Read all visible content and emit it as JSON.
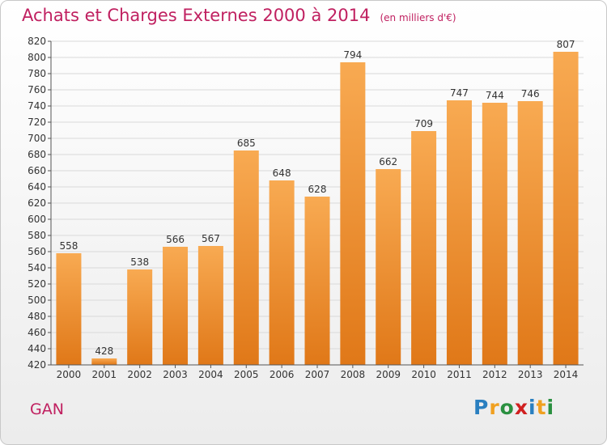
{
  "title": "Achats et Charges Externes 2000 à 2014",
  "subtitle": "(en milliers d'€)",
  "location": "GAN",
  "logo": {
    "letters": [
      "P",
      "r",
      "o",
      "x",
      "i",
      "t",
      "i"
    ],
    "colors": [
      "#2a7fc0",
      "#f0a020",
      "#2a9040",
      "#d02020",
      "#2a7fc0",
      "#f0a020",
      "#2a9040"
    ]
  },
  "colors": {
    "bar_top": "#f8aa52",
    "bar_bottom": "#e07818",
    "accent": "#c02060",
    "grid": "#d9d9d9"
  },
  "chart_data": {
    "type": "bar",
    "categories": [
      "2000",
      "2001",
      "2002",
      "2003",
      "2004",
      "2005",
      "2006",
      "2007",
      "2008",
      "2009",
      "2010",
      "2011",
      "2012",
      "2013",
      "2014"
    ],
    "values": [
      558,
      428,
      538,
      566,
      567,
      685,
      648,
      628,
      794,
      662,
      709,
      747,
      744,
      746,
      807
    ],
    "ylim": [
      420,
      820
    ],
    "yticks": [
      420,
      440,
      460,
      480,
      500,
      520,
      540,
      560,
      580,
      600,
      620,
      640,
      660,
      680,
      700,
      720,
      740,
      760,
      780,
      800,
      820
    ],
    "grid": true
  }
}
